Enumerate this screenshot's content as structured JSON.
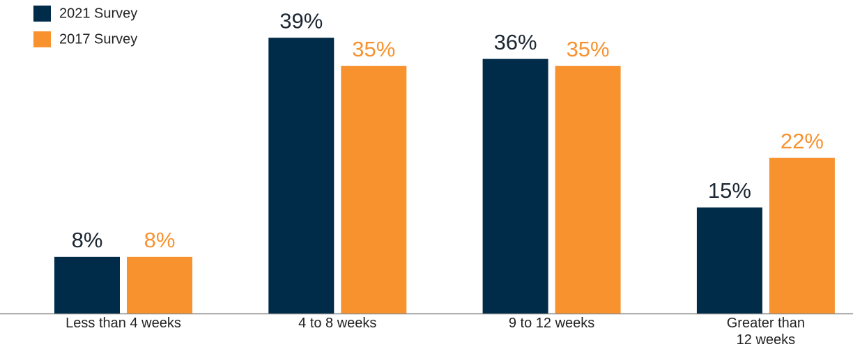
{
  "chart_data": {
    "type": "bar",
    "categories": [
      "Less than 4 weeks",
      "4 to 8 weeks",
      "9 to 12 weeks",
      "Greater than\n12 weeks"
    ],
    "series": [
      {
        "name": "2021 Survey",
        "color": "#002b49",
        "values": [
          8,
          39,
          36,
          15
        ],
        "value_labels": [
          "8%",
          "39%",
          "36%",
          "15%"
        ]
      },
      {
        "name": "2017 Survey",
        "color": "#f7922f",
        "values": [
          8,
          35,
          35,
          22
        ],
        "value_labels": [
          "8%",
          "35%",
          "35%",
          "22%"
        ]
      }
    ],
    "legend": "top-left"
  }
}
